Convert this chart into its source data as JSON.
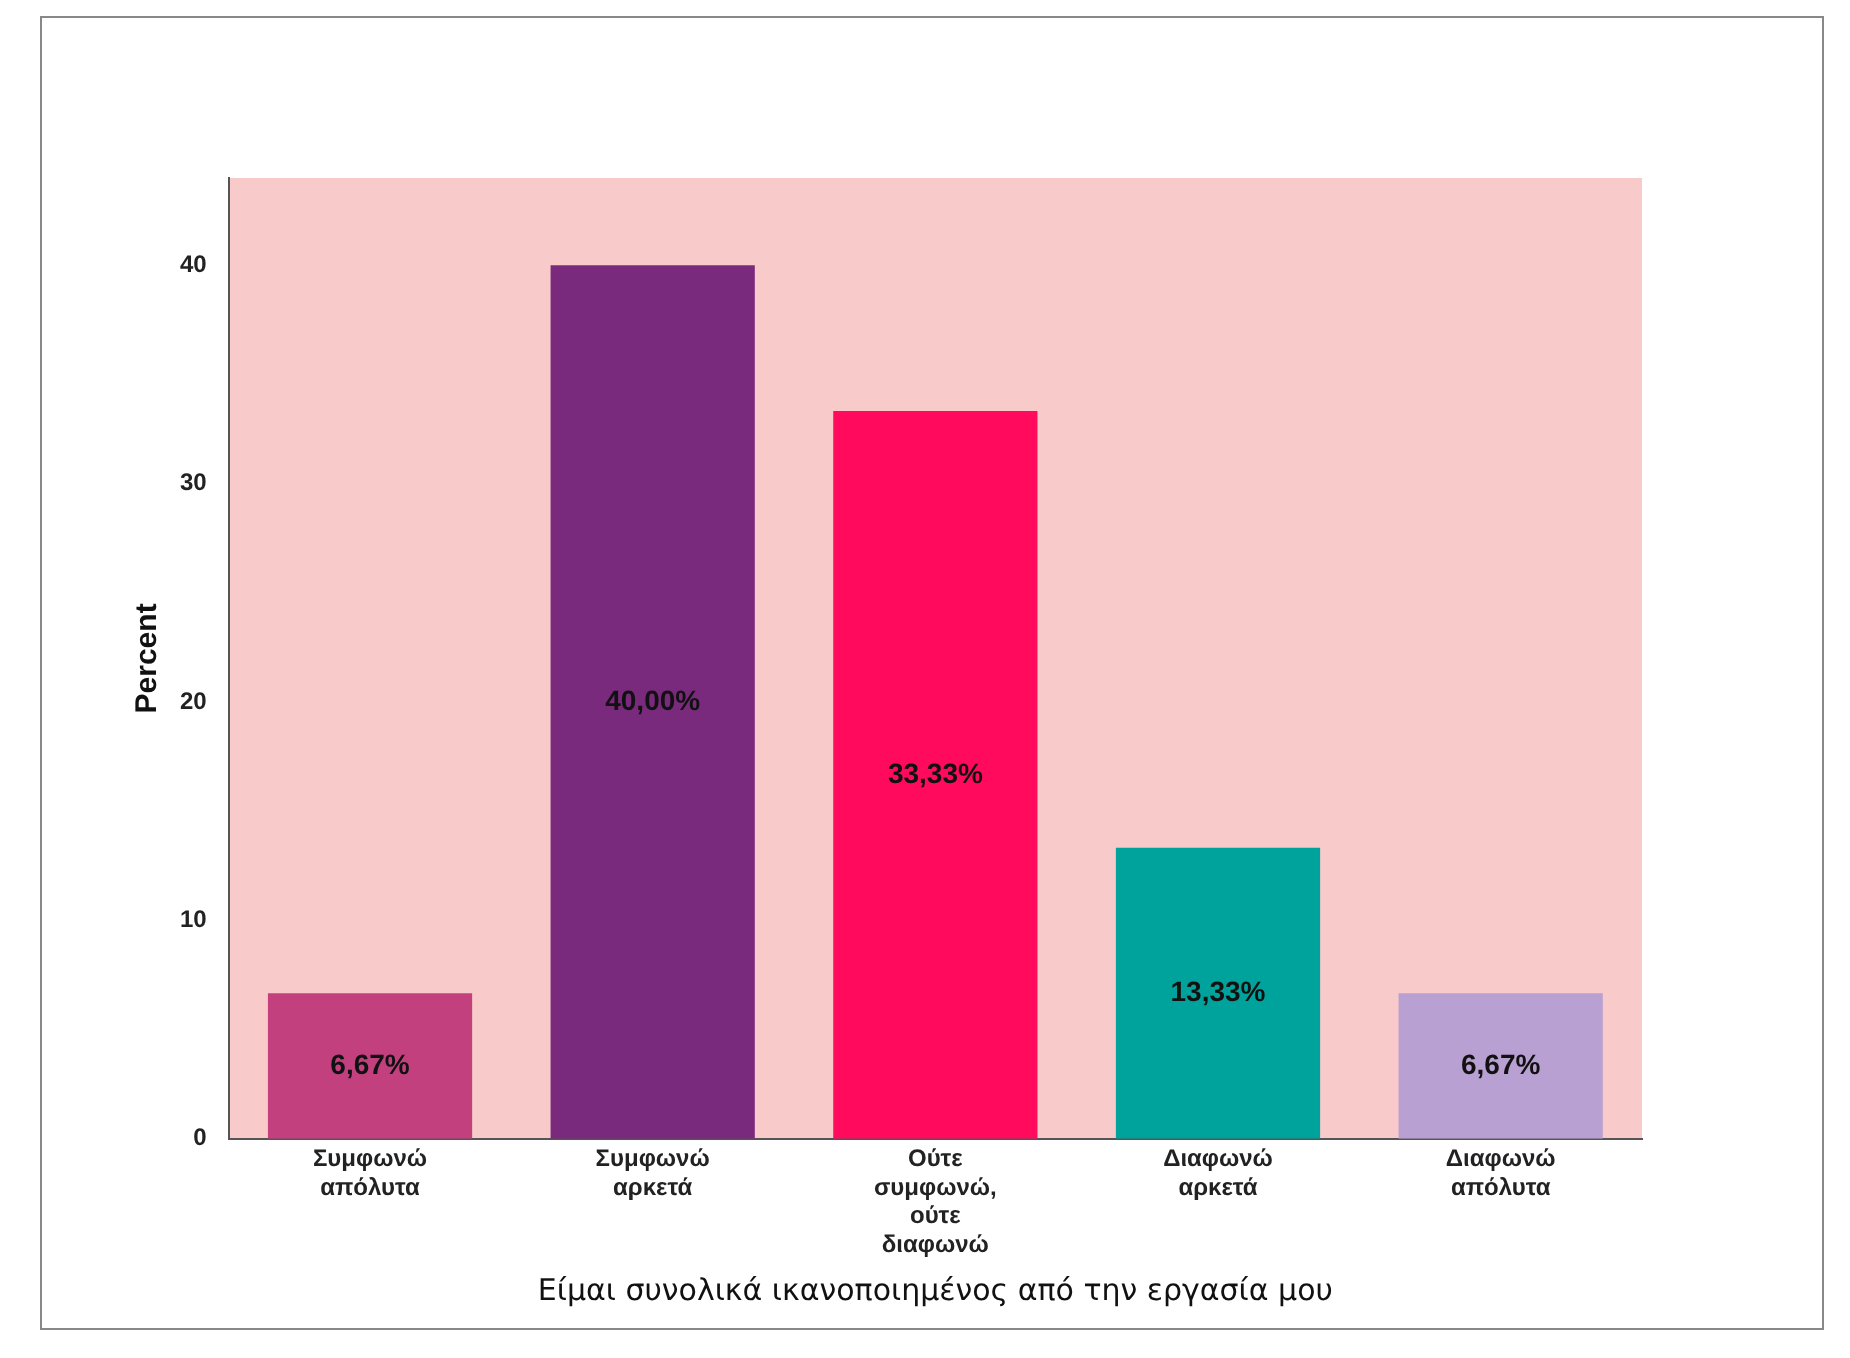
{
  "chart_data": {
    "type": "bar",
    "xlabel": "Είμαι συνολικά ικανοποιημένος από την εργασία μου",
    "ylabel": "Percent",
    "categories": [
      "Συμφωνώ απόλυτα",
      "Συμφωνώ αρκετά",
      "Ούτε συμφωνώ, ούτε διαφωνώ",
      "Διαφωνώ αρκετά",
      "Διαφωνώ απόλυτα"
    ],
    "values": [
      6.67,
      40,
      33.33,
      13.33,
      6.67
    ],
    "colors": [
      "#c2407e",
      "#7a2a7c",
      "#ff0a5c",
      "#00a39c",
      "#b9a0d2"
    ],
    "value_labels": [
      "6,67%",
      "40,00%",
      "33,33%",
      "13,33%",
      "6,67%"
    ],
    "ylim": [
      0,
      44
    ],
    "yticks": [
      0,
      10,
      20,
      30,
      40
    ],
    "grid": false,
    "legend": false
  }
}
